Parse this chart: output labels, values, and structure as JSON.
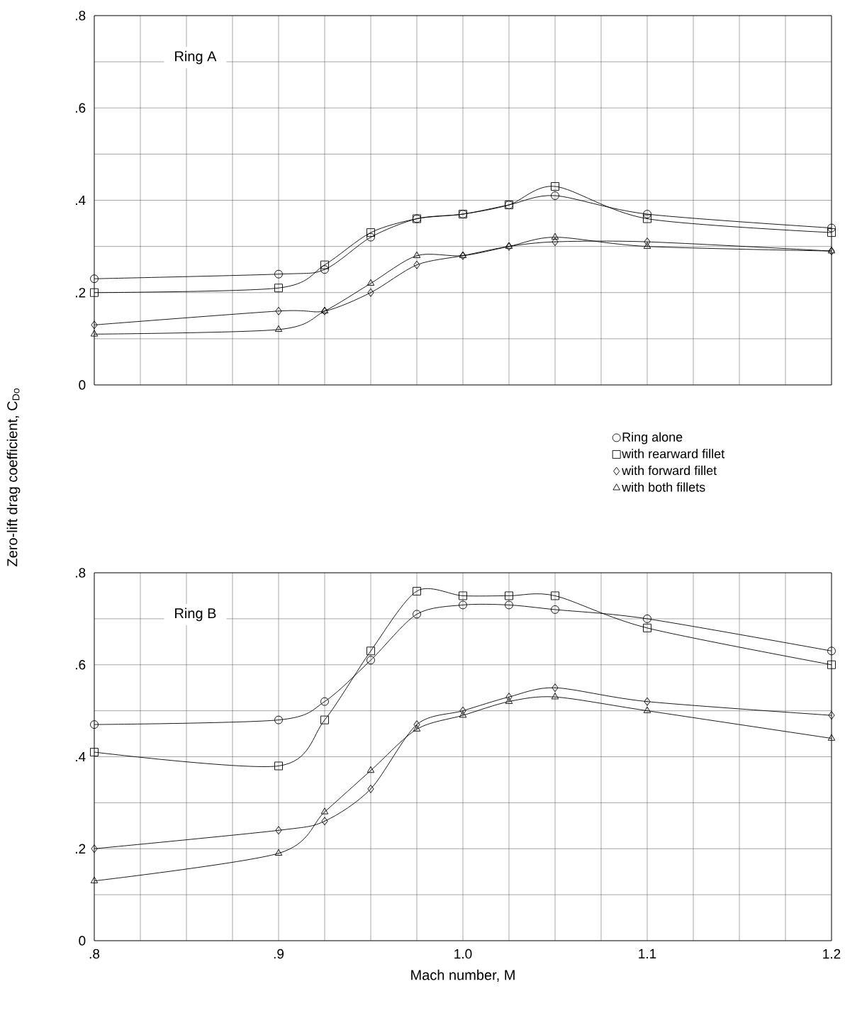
{
  "chart_data": [
    {
      "type": "line",
      "title": "Ring A",
      "ylabel": "Zero-lift drag coefficient, C$_{Do}$",
      "x": [
        0.8,
        0.9,
        0.925,
        0.95,
        0.975,
        1.0,
        1.025,
        1.05,
        1.1,
        1.2
      ],
      "series": [
        {
          "name": "Ring alone",
          "color": "#000000",
          "marker": "circle",
          "values": [
            0.23,
            0.24,
            0.25,
            0.32,
            0.36,
            0.37,
            0.39,
            0.41,
            0.37,
            0.34
          ]
        },
        {
          "name": "with rearward fillet",
          "color": "#000000",
          "marker": "square",
          "values": [
            0.2,
            0.21,
            0.26,
            0.33,
            0.36,
            0.37,
            0.39,
            0.43,
            0.36,
            0.33
          ]
        },
        {
          "name": "with forward fillet",
          "color": "#000000",
          "marker": "diamond",
          "values": [
            0.13,
            0.16,
            0.16,
            0.2,
            0.26,
            0.28,
            0.3,
            0.31,
            0.31,
            0.29
          ]
        },
        {
          "name": "with both fillets",
          "color": "#000000",
          "marker": "triangle",
          "values": [
            0.11,
            0.12,
            0.16,
            0.22,
            0.28,
            0.28,
            0.3,
            0.32,
            0.3,
            0.29
          ]
        }
      ],
      "xlim": [
        0.8,
        1.2
      ],
      "ylim": [
        0,
        0.8
      ],
      "xticks": [
        {
          "value": 0.8,
          "label": null
        },
        {
          "value": 0.825,
          "label": null
        },
        {
          "value": 0.85,
          "label": null
        },
        {
          "value": 0.875,
          "label": null
        },
        {
          "value": 0.9,
          "label": null
        },
        {
          "value": 0.925,
          "label": null
        },
        {
          "value": 0.95,
          "label": null
        },
        {
          "value": 0.975,
          "label": null
        },
        {
          "value": 1.0,
          "label": null
        },
        {
          "value": 1.025,
          "label": null
        },
        {
          "value": 1.05,
          "label": null
        },
        {
          "value": 1.075,
          "label": null
        },
        {
          "value": 1.1,
          "label": null
        },
        {
          "value": 1.125,
          "label": null
        },
        {
          "value": 1.15,
          "label": null
        },
        {
          "value": 1.175,
          "label": null
        },
        {
          "value": 1.2,
          "label": null
        }
      ],
      "yticks": [
        0,
        {
          "value": 0.1,
          "label": null
        },
        {
          "value": 0.2,
          "label": ".2"
        },
        {
          "value": 0.3,
          "label": null
        },
        {
          "value": 0.4,
          "label": ".4"
        },
        {
          "value": 0.5,
          "label": null
        },
        {
          "value": 0.6,
          "label": ".6"
        },
        {
          "value": 0.7,
          "label": null
        },
        {
          "value": 0.8,
          "label": ".8"
        }
      ],
      "grid": true,
      "legend": "bottom right",
      "tick_labels": "y"
    },
    {
      "type": "line",
      "title": "Ring B",
      "xlabel": "Mach number, M",
      "x": [
        0.8,
        0.9,
        0.925,
        0.95,
        0.975,
        1.0,
        1.025,
        1.05,
        1.1,
        1.2
      ],
      "series": [
        {
          "color": "#000000",
          "marker": "circle",
          "values": [
            0.47,
            0.48,
            0.52,
            0.61,
            0.71,
            0.73,
            0.73,
            0.72,
            0.7,
            0.63
          ]
        },
        {
          "color": "#000000",
          "marker": "square",
          "values": [
            0.41,
            0.38,
            0.48,
            0.63,
            0.76,
            0.75,
            0.75,
            0.75,
            0.68,
            0.6
          ]
        },
        {
          "color": "#000000",
          "marker": "diamond",
          "values": [
            0.2,
            0.24,
            0.26,
            0.33,
            0.47,
            0.5,
            0.53,
            0.55,
            0.52,
            0.49
          ]
        },
        {
          "color": "#000000",
          "marker": "triangle",
          "values": [
            0.13,
            0.19,
            0.28,
            0.37,
            0.46,
            0.49,
            0.52,
            0.53,
            0.5,
            0.44
          ]
        }
      ],
      "xlim": [
        0.8,
        1.2
      ],
      "ylim": [
        0,
        0.8
      ],
      "xticks": [
        {
          "value": 0.8,
          "label": ".8"
        },
        {
          "value": 0.825,
          "label": null
        },
        {
          "value": 0.85,
          "label": null
        },
        {
          "value": 0.875,
          "label": null
        },
        {
          "value": 0.9,
          "label": ".9"
        },
        {
          "value": 0.925,
          "label": null
        },
        {
          "value": 0.95,
          "label": null
        },
        {
          "value": 0.975,
          "label": null
        },
        {
          "value": 1.0,
          "label": "1.0"
        },
        {
          "value": 1.025,
          "label": null
        },
        {
          "value": 1.05,
          "label": null
        },
        {
          "value": 1.075,
          "label": null
        },
        {
          "value": 1.1,
          "label": "1.1"
        },
        {
          "value": 1.125,
          "label": null
        },
        {
          "value": 1.15,
          "label": null
        },
        {
          "value": 1.175,
          "label": null
        },
        {
          "value": 1.2,
          "label": "1.2"
        }
      ],
      "yticks": [
        0,
        {
          "value": 0.1,
          "label": null
        },
        {
          "value": 0.2,
          "label": ".2"
        },
        {
          "value": 0.3,
          "label": null
        },
        {
          "value": 0.4,
          "label": ".4"
        },
        {
          "value": 0.5,
          "label": null
        },
        {
          "value": 0.6,
          "label": ".6"
        },
        {
          "value": 0.7,
          "label": null
        },
        {
          "value": 0.8,
          "label": ".8"
        }
      ],
      "grid": true
    }
  ]
}
